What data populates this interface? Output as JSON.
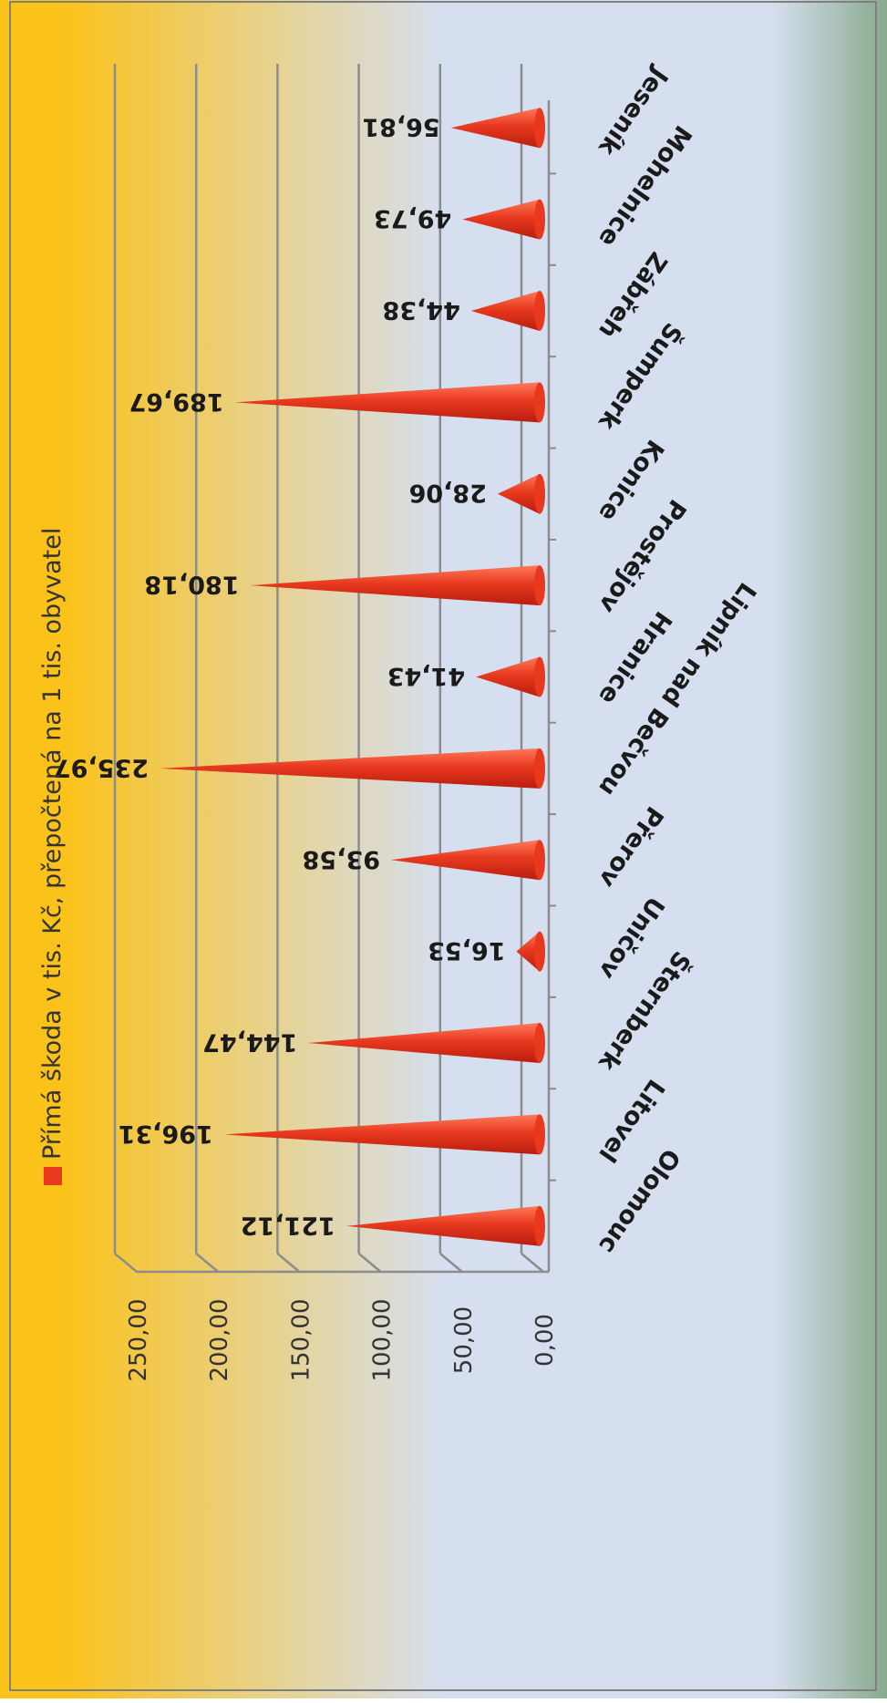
{
  "chart_data": {
    "type": "bar",
    "title": "",
    "legend": {
      "position": "top",
      "label": "Přímá škoda v tis. Kč, přepočtená na 1 tis. obyvatel"
    },
    "colors": {
      "bar": "#e8391f",
      "background_start": "#fbc21a",
      "background_mid": "#d6dff0",
      "background_end": "#88aa8c"
    },
    "ylim": [
      0,
      250
    ],
    "yticks": [
      "0,00",
      "50,00",
      "100,00",
      "150,00",
      "200,00",
      "250,00"
    ],
    "ytick_values": [
      0,
      50,
      100,
      150,
      200,
      250
    ],
    "categories": [
      "Olomouc",
      "Litovel",
      "Šternberk",
      "Uničov",
      "Přerov",
      "Lipník nad Bečvou",
      "Hranice",
      "Prostějov",
      "Konice",
      "Šumperk",
      "Zábřeh",
      "Mohelnice",
      "Jeseník"
    ],
    "values": [
      121.12,
      196.31,
      144.47,
      16.53,
      93.58,
      235.97,
      41.43,
      180.18,
      28.06,
      189.67,
      44.38,
      49.73,
      56.81
    ],
    "value_labels": [
      "121,12",
      "196,31",
      "144,47",
      "16,53",
      "93,58",
      "235,97",
      "41,43",
      "180,18",
      "28,06",
      "189,67",
      "44,38",
      "49,73",
      "56,81"
    ],
    "grid": true
  }
}
